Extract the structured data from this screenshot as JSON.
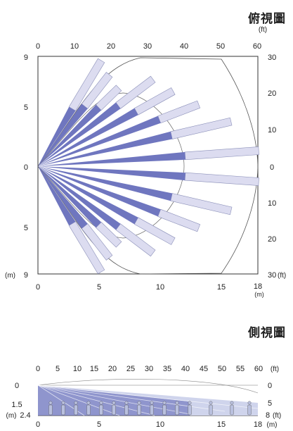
{
  "top_view": {
    "title": "俯視圖",
    "ft_unit": "(ft)",
    "ft_ticks": [
      "0",
      "10",
      "20",
      "30",
      "40",
      "50",
      "60"
    ],
    "m_ticks": [
      "0",
      "5",
      "10",
      "15",
      "18"
    ],
    "m_unit": "(m)",
    "left_ticks": [
      "9",
      "5",
      "0",
      "5",
      "9"
    ],
    "left_unit": "(m)",
    "right_ticks": [
      "30",
      "20",
      "10",
      "0",
      "10",
      "20",
      "30"
    ],
    "right_unit": "(ft)"
  },
  "side_view": {
    "title": "側視圖",
    "ft_ticks": [
      "0",
      "5",
      "10",
      "15",
      "20",
      "25",
      "30",
      "35",
      "40",
      "45",
      "50",
      "55",
      "60"
    ],
    "ft_unit": "(ft)",
    "m_ticks": [
      "0",
      "5",
      "10",
      "15",
      "18"
    ],
    "m_unit": "(m)",
    "left_labels": [
      "0",
      "1.5",
      "2.4"
    ],
    "left_unit": "(m)",
    "right_labels": [
      "0",
      "5",
      "8"
    ],
    "right_unit": "(ft)"
  },
  "colors": {
    "beam_dark": "#6f76bf",
    "beam_light": "#dcdcf0",
    "side_fill": "#cfd4ec",
    "side_fill_dark": "#7b82c4",
    "person": "#b9c0de"
  }
}
